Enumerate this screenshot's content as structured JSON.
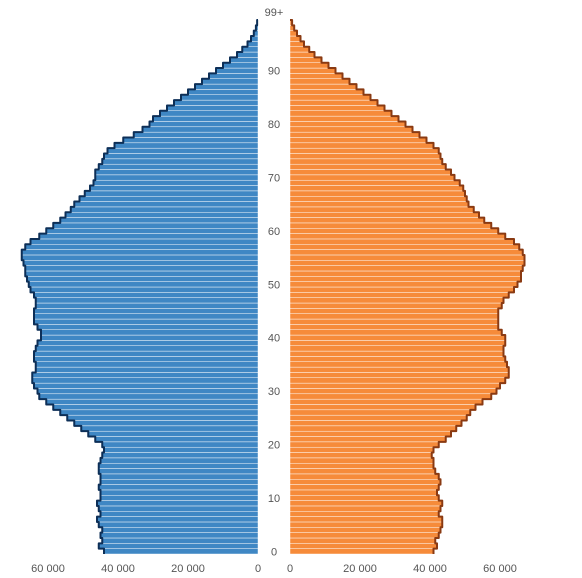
{
  "chart_data": {
    "type": "bar",
    "orientation": "horizontal",
    "layout": "population-pyramid",
    "title": "",
    "colors": {
      "left": "#3f87c4",
      "left_outline": "#0d2f57",
      "right": "#f68b3a",
      "right_outline": "#8a3a12",
      "separator": "#ffffff"
    },
    "age_axis": {
      "min": 0,
      "max": 99,
      "tick_values": [
        0,
        10,
        20,
        30,
        40,
        50,
        60,
        70,
        80,
        90,
        99
      ],
      "tick_labels": [
        "0",
        "10",
        "20",
        "30",
        "40",
        "50",
        "60",
        "70",
        "80",
        "90",
        "99+"
      ]
    },
    "value_axis_left": {
      "range": [
        0,
        70000
      ],
      "tick_values": [
        0,
        20000,
        40000,
        60000
      ],
      "tick_labels": [
        "0",
        "20 000",
        "40 000",
        "60 000"
      ]
    },
    "value_axis_right": {
      "range": [
        0,
        70000
      ],
      "tick_values": [
        0,
        20000,
        40000,
        60000
      ],
      "tick_labels": [
        "0",
        "20 000",
        "40 000",
        "60 000"
      ]
    },
    "series": [
      {
        "side": "left",
        "values": [
          44000,
          45500,
          44500,
          45000,
          44500,
          45500,
          46000,
          45000,
          45500,
          46000,
          45000,
          45000,
          45500,
          45000,
          45000,
          45500,
          45500,
          45000,
          44500,
          44000,
          44500,
          46500,
          48500,
          50500,
          52500,
          54500,
          56500,
          58500,
          60500,
          62500,
          63000,
          64000,
          64500,
          64500,
          63500,
          63500,
          64000,
          64000,
          63500,
          63000,
          62000,
          62000,
          63000,
          64000,
          64000,
          64000,
          63500,
          63500,
          64000,
          65000,
          65500,
          66000,
          66500,
          66500,
          67000,
          67500,
          67500,
          66500,
          65000,
          62500,
          60500,
          58500,
          56500,
          55000,
          53500,
          52500,
          51000,
          49500,
          48000,
          47000,
          46500,
          46500,
          45500,
          44500,
          44000,
          43000,
          41000,
          38500,
          35500,
          33000,
          31000,
          30000,
          28000,
          26000,
          24000,
          22000,
          20000,
          18000,
          16000,
          14000,
          12000,
          10000,
          8000,
          6000,
          4500,
          3000,
          2000,
          1200,
          600,
          250
        ]
      },
      {
        "side": "right",
        "values": [
          41000,
          42000,
          41500,
          42500,
          43000,
          43500,
          43500,
          42500,
          43000,
          43500,
          42500,
          42000,
          42500,
          43000,
          42500,
          41500,
          41000,
          41000,
          40500,
          41000,
          42500,
          44500,
          46000,
          47500,
          49000,
          50500,
          51500,
          53000,
          55000,
          57500,
          59000,
          60000,
          61500,
          62500,
          62500,
          62000,
          61500,
          61000,
          61000,
          61500,
          61500,
          60500,
          59500,
          59500,
          59500,
          59500,
          60500,
          61000,
          62500,
          64000,
          65000,
          66000,
          66000,
          66500,
          67000,
          67000,
          66500,
          65500,
          64000,
          61500,
          59500,
          57500,
          55500,
          54000,
          52500,
          51000,
          50500,
          50000,
          49500,
          48500,
          47000,
          46000,
          44500,
          43500,
          43000,
          42500,
          41000,
          39000,
          37000,
          35000,
          33000,
          31000,
          29000,
          27000,
          25000,
          23000,
          21000,
          19000,
          17000,
          15000,
          13000,
          11000,
          9000,
          7000,
          5500,
          4000,
          3000,
          2000,
          1200,
          600
        ]
      }
    ]
  }
}
